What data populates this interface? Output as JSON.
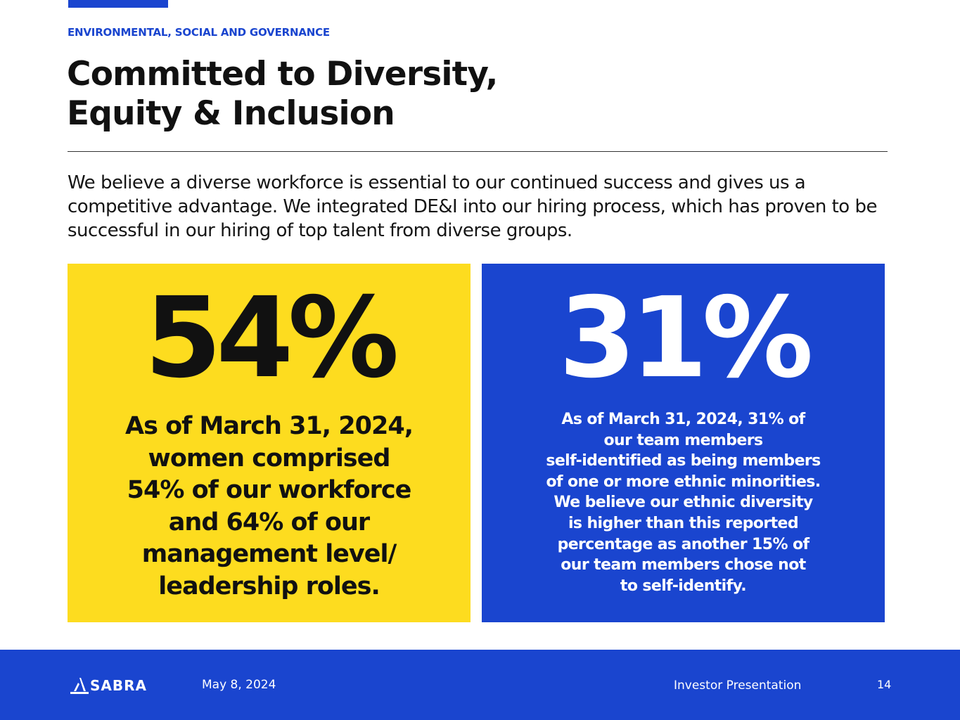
{
  "header": {
    "eyebrow": "ENVIRONMENTAL, SOCIAL AND GOVERNANCE",
    "title_line1": "Committed to Diversity,",
    "title_line2": "Equity & Inclusion"
  },
  "intro": {
    "text": "We believe a diverse workforce is essential to our continued success and gives us a competitive advantage. We integrated DE&I into our hiring process, which has proven to be successful in our hiring of top talent from diverse groups."
  },
  "stats": [
    {
      "value": "54%",
      "lines": [
        "As of March 31, 2024,",
        "women comprised",
        "54% of our workforce",
        "and 64% of our",
        "management level/",
        "leadership roles."
      ]
    },
    {
      "value": "31%",
      "lines": [
        "As of March 31, 2024, 31% of",
        "our team members",
        "self-identified as being members",
        "of one or more ethnic minorities.",
        "We believe our ethnic diversity",
        "is higher than this reported",
        "percentage as another 15% of",
        "our team members chose not",
        "to self-identify."
      ]
    }
  ],
  "footer": {
    "logo_text": "SABRA",
    "logo_icon": "sabra-logo-icon",
    "date": "May 8, 2024",
    "deck": "Investor Presentation",
    "page_number": "14"
  },
  "colors": {
    "brand_blue": "#1a45cf",
    "accent_yellow": "#fddc1f",
    "text_dark": "#111111",
    "white": "#ffffff"
  }
}
